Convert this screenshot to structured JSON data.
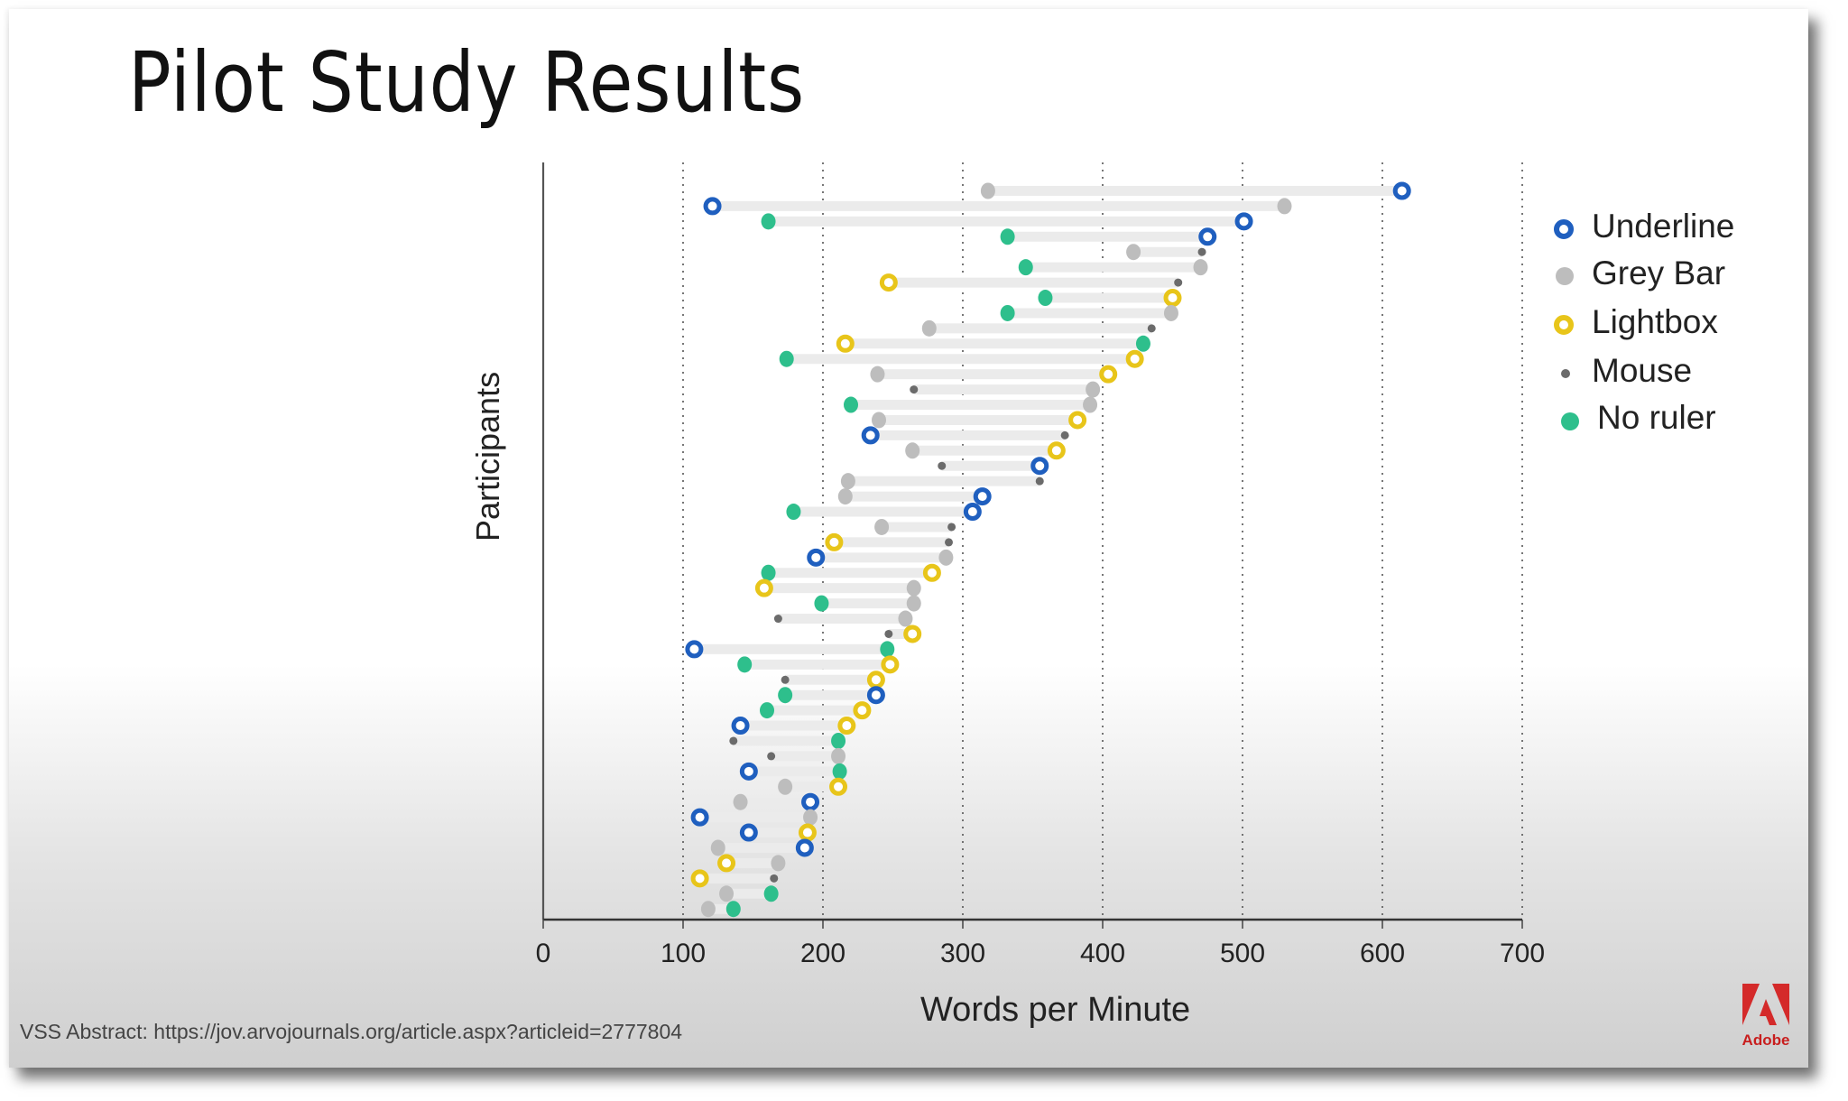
{
  "slide": {
    "title": "Pilot Study Results",
    "footer": "VSS Abstract: https://jov.arvojournals.org/article.aspx?articleid=2777804",
    "logo_text": "Adobe"
  },
  "colors": {
    "underline": "#1f5fbf",
    "grey_bar": "#bdbdbd",
    "lightbox": "#e8c51a",
    "mouse": "#6b6b6b",
    "no_ruler": "#2ebf8c",
    "range_bar": "#ebebeb",
    "adobe_red": "#d42a2a"
  },
  "legend": [
    {
      "key": "underline",
      "label": "Underline"
    },
    {
      "key": "grey_bar",
      "label": "Grey Bar"
    },
    {
      "key": "lightbox",
      "label": "Lightbox"
    },
    {
      "key": "mouse",
      "label": "Mouse"
    },
    {
      "key": "no_ruler",
      "label": "No ruler"
    }
  ],
  "chart_data": {
    "type": "scatter",
    "subtype": "dumbbell",
    "title": "Pilot Study Results",
    "xlabel": "Words per Minute",
    "ylabel": "Participants",
    "xlim": [
      0,
      700
    ],
    "xticks": [
      0,
      100,
      200,
      300,
      400,
      500,
      600,
      700
    ],
    "grid": "vertical dotted",
    "legend_position": "right",
    "series_names": [
      "Underline",
      "Grey Bar",
      "Lightbox",
      "Mouse",
      "No ruler"
    ],
    "participants": [
      {
        "min": {
          "cond": "grey_bar",
          "wpm": 318
        },
        "max": {
          "cond": "underline",
          "wpm": 614
        }
      },
      {
        "min": {
          "cond": "underline",
          "wpm": 121
        },
        "max": {
          "cond": "grey_bar",
          "wpm": 530
        }
      },
      {
        "min": {
          "cond": "no_ruler",
          "wpm": 161
        },
        "max": {
          "cond": "underline",
          "wpm": 501
        }
      },
      {
        "min": {
          "cond": "no_ruler",
          "wpm": 332
        },
        "max": {
          "cond": "underline",
          "wpm": 475
        }
      },
      {
        "min": {
          "cond": "grey_bar",
          "wpm": 422
        },
        "max": {
          "cond": "mouse",
          "wpm": 471
        }
      },
      {
        "min": {
          "cond": "no_ruler",
          "wpm": 345
        },
        "max": {
          "cond": "grey_bar",
          "wpm": 470
        }
      },
      {
        "min": {
          "cond": "lightbox",
          "wpm": 247
        },
        "max": {
          "cond": "mouse",
          "wpm": 454
        }
      },
      {
        "min": {
          "cond": "no_ruler",
          "wpm": 359
        },
        "max": {
          "cond": "lightbox",
          "wpm": 450
        }
      },
      {
        "min": {
          "cond": "no_ruler",
          "wpm": 332
        },
        "max": {
          "cond": "grey_bar",
          "wpm": 449
        }
      },
      {
        "min": {
          "cond": "grey_bar",
          "wpm": 276
        },
        "max": {
          "cond": "mouse",
          "wpm": 435
        }
      },
      {
        "min": {
          "cond": "lightbox",
          "wpm": 216
        },
        "max": {
          "cond": "no_ruler",
          "wpm": 429
        }
      },
      {
        "min": {
          "cond": "no_ruler",
          "wpm": 174
        },
        "max": {
          "cond": "lightbox",
          "wpm": 423
        }
      },
      {
        "min": {
          "cond": "grey_bar",
          "wpm": 239
        },
        "max": {
          "cond": "lightbox",
          "wpm": 404
        }
      },
      {
        "min": {
          "cond": "mouse",
          "wpm": 265
        },
        "max": {
          "cond": "grey_bar",
          "wpm": 393
        }
      },
      {
        "min": {
          "cond": "no_ruler",
          "wpm": 220
        },
        "max": {
          "cond": "grey_bar",
          "wpm": 391
        }
      },
      {
        "min": {
          "cond": "grey_bar",
          "wpm": 240
        },
        "max": {
          "cond": "lightbox",
          "wpm": 382
        }
      },
      {
        "min": {
          "cond": "underline",
          "wpm": 234
        },
        "max": {
          "cond": "mouse",
          "wpm": 373
        }
      },
      {
        "min": {
          "cond": "grey_bar",
          "wpm": 264
        },
        "max": {
          "cond": "lightbox",
          "wpm": 367
        }
      },
      {
        "min": {
          "cond": "mouse",
          "wpm": 285
        },
        "max": {
          "cond": "underline",
          "wpm": 355
        }
      },
      {
        "min": {
          "cond": "grey_bar",
          "wpm": 218
        },
        "max": {
          "cond": "mouse",
          "wpm": 355
        }
      },
      {
        "min": {
          "cond": "grey_bar",
          "wpm": 216
        },
        "max": {
          "cond": "underline",
          "wpm": 314
        }
      },
      {
        "min": {
          "cond": "no_ruler",
          "wpm": 179
        },
        "max": {
          "cond": "underline",
          "wpm": 307
        }
      },
      {
        "min": {
          "cond": "grey_bar",
          "wpm": 242
        },
        "max": {
          "cond": "mouse",
          "wpm": 292
        }
      },
      {
        "min": {
          "cond": "lightbox",
          "wpm": 208
        },
        "max": {
          "cond": "mouse",
          "wpm": 290
        }
      },
      {
        "min": {
          "cond": "underline",
          "wpm": 195
        },
        "max": {
          "cond": "grey_bar",
          "wpm": 288
        }
      },
      {
        "min": {
          "cond": "no_ruler",
          "wpm": 161
        },
        "max": {
          "cond": "lightbox",
          "wpm": 278
        }
      },
      {
        "min": {
          "cond": "lightbox",
          "wpm": 158
        },
        "max": {
          "cond": "grey_bar",
          "wpm": 265
        }
      },
      {
        "min": {
          "cond": "no_ruler",
          "wpm": 199
        },
        "max": {
          "cond": "grey_bar",
          "wpm": 265
        }
      },
      {
        "min": {
          "cond": "mouse",
          "wpm": 168
        },
        "max": {
          "cond": "grey_bar",
          "wpm": 259
        }
      },
      {
        "min": {
          "cond": "mouse",
          "wpm": 247
        },
        "max": {
          "cond": "lightbox",
          "wpm": 264
        }
      },
      {
        "min": {
          "cond": "underline",
          "wpm": 108
        },
        "max": {
          "cond": "no_ruler",
          "wpm": 246
        }
      },
      {
        "min": {
          "cond": "no_ruler",
          "wpm": 144
        },
        "max": {
          "cond": "lightbox",
          "wpm": 248
        }
      },
      {
        "min": {
          "cond": "mouse",
          "wpm": 173
        },
        "max": {
          "cond": "lightbox",
          "wpm": 238
        }
      },
      {
        "min": {
          "cond": "no_ruler",
          "wpm": 173
        },
        "max": {
          "cond": "underline",
          "wpm": 238
        }
      },
      {
        "min": {
          "cond": "no_ruler",
          "wpm": 160
        },
        "max": {
          "cond": "lightbox",
          "wpm": 228
        }
      },
      {
        "min": {
          "cond": "underline",
          "wpm": 141
        },
        "max": {
          "cond": "lightbox",
          "wpm": 217
        }
      },
      {
        "min": {
          "cond": "mouse",
          "wpm": 136
        },
        "max": {
          "cond": "no_ruler",
          "wpm": 211
        }
      },
      {
        "min": {
          "cond": "mouse",
          "wpm": 163
        },
        "max": {
          "cond": "grey_bar",
          "wpm": 211
        }
      },
      {
        "min": {
          "cond": "underline",
          "wpm": 147
        },
        "max": {
          "cond": "no_ruler",
          "wpm": 212
        }
      },
      {
        "min": {
          "cond": "grey_bar",
          "wpm": 173
        },
        "max": {
          "cond": "lightbox",
          "wpm": 211
        }
      },
      {
        "min": {
          "cond": "grey_bar",
          "wpm": 141
        },
        "max": {
          "cond": "underline",
          "wpm": 191
        }
      },
      {
        "min": {
          "cond": "underline",
          "wpm": 112
        },
        "max": {
          "cond": "grey_bar",
          "wpm": 191
        }
      },
      {
        "min": {
          "cond": "underline",
          "wpm": 147
        },
        "max": {
          "cond": "lightbox",
          "wpm": 189
        }
      },
      {
        "min": {
          "cond": "grey_bar",
          "wpm": 125
        },
        "max": {
          "cond": "underline",
          "wpm": 187
        }
      },
      {
        "min": {
          "cond": "lightbox",
          "wpm": 131
        },
        "max": {
          "cond": "grey_bar",
          "wpm": 168
        }
      },
      {
        "min": {
          "cond": "lightbox",
          "wpm": 112
        },
        "max": {
          "cond": "mouse",
          "wpm": 165
        }
      },
      {
        "min": {
          "cond": "grey_bar",
          "wpm": 131
        },
        "max": {
          "cond": "no_ruler",
          "wpm": 163
        }
      },
      {
        "min": {
          "cond": "grey_bar",
          "wpm": 118
        },
        "max": {
          "cond": "no_ruler",
          "wpm": 136
        }
      }
    ]
  }
}
